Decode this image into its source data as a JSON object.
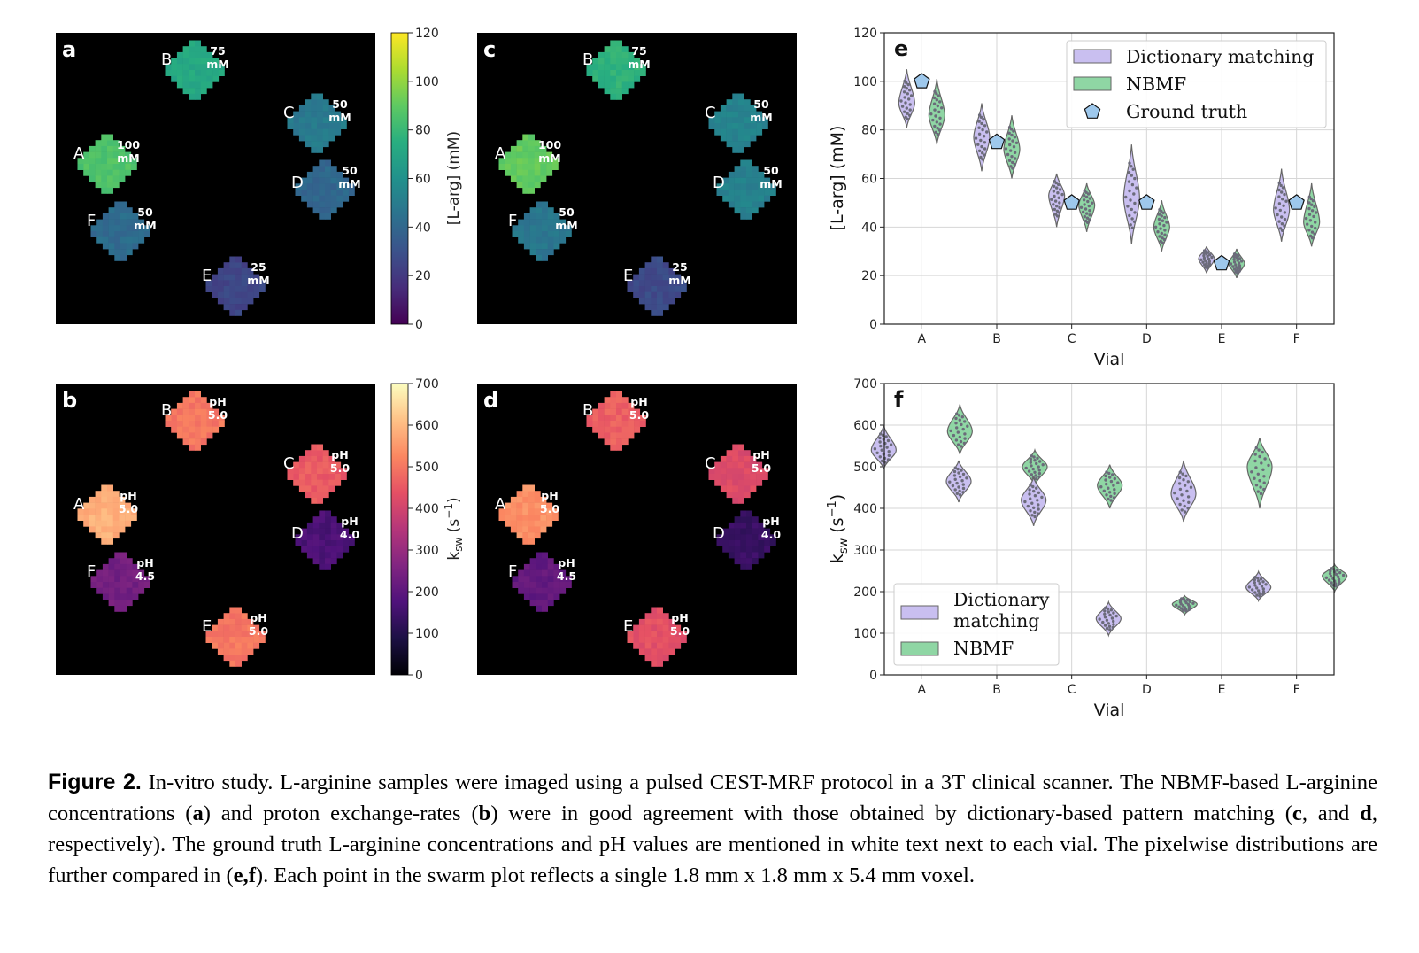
{
  "panels": {
    "a": {
      "letter": "a"
    },
    "b": {
      "letter": "b"
    },
    "c": {
      "letter": "c"
    },
    "d": {
      "letter": "d"
    }
  },
  "vials": [
    {
      "id": "A",
      "conc_label": [
        "100",
        "mM"
      ],
      "ph_label": [
        "pH",
        "5.0"
      ]
    },
    {
      "id": "B",
      "conc_label": [
        "75",
        "mM"
      ],
      "ph_label": [
        "pH",
        "5.0"
      ]
    },
    {
      "id": "C",
      "conc_label": [
        "50",
        "mM"
      ],
      "ph_label": [
        "pH",
        "5.0"
      ]
    },
    {
      "id": "D",
      "conc_label": [
        "50",
        "mM"
      ],
      "ph_label": [
        "pH",
        "4.0"
      ]
    },
    {
      "id": "E",
      "conc_label": [
        "25",
        "mM"
      ],
      "ph_label": [
        "pH",
        "5.0"
      ]
    },
    {
      "id": "F",
      "conc_label": [
        "50",
        "mM"
      ],
      "ph_label": [
        "pH",
        "4.5"
      ]
    }
  ],
  "colorbars": {
    "conc": {
      "label": "[L-arg] (mM)",
      "ticks": [
        "0",
        "20",
        "40",
        "60",
        "80",
        "100",
        "120"
      ],
      "range": [
        0,
        120
      ],
      "colormap": "viridis"
    },
    "ksw": {
      "label_main": "k",
      "label_sub": "sw",
      "label_tail": " (s",
      "label_sup": "−1",
      "label_close": ")",
      "ticks": [
        "0",
        "100",
        "200",
        "300",
        "400",
        "500",
        "600",
        "700"
      ],
      "range": [
        0,
        700
      ],
      "colormap": "magma"
    }
  },
  "chart_data": [
    {
      "panel": "e",
      "type": "violin",
      "xlabel": "Vial",
      "ylabel": "[L-arg] (mM)",
      "categories": [
        "A",
        "B",
        "C",
        "D",
        "E",
        "F"
      ],
      "ylim": [
        0,
        120
      ],
      "yticks": [
        "0",
        "20",
        "40",
        "60",
        "80",
        "100",
        "120"
      ],
      "grid": true,
      "legend_placement": "top-right",
      "series": [
        {
          "name": "Dictionary matching",
          "color": "#c9bff0",
          "medians": [
            91,
            77,
            53,
            52,
            27,
            47
          ],
          "ranges": [
            [
              81,
              105
            ],
            [
              63,
              91
            ],
            [
              40,
              62
            ],
            [
              33,
              74
            ],
            [
              21,
              32
            ],
            [
              34,
              64
            ]
          ]
        },
        {
          "name": "NBMF",
          "color": "#8fd6a4",
          "medians": [
            86,
            72,
            49,
            40,
            25,
            42
          ],
          "ranges": [
            [
              74,
              101
            ],
            [
              60,
              86
            ],
            [
              38,
              58
            ],
            [
              30,
              51
            ],
            [
              19,
              31
            ],
            [
              32,
              58
            ]
          ]
        },
        {
          "name": "Ground truth",
          "color": "#9ec8ec",
          "values": [
            100,
            75,
            50,
            50,
            25,
            50
          ]
        }
      ]
    },
    {
      "panel": "f",
      "type": "violin",
      "xlabel": "Vial",
      "ylabel": "ksw (s−1)",
      "categories": [
        "A",
        "B",
        "C",
        "D",
        "E",
        "F"
      ],
      "ylim": [
        0,
        700
      ],
      "yticks": [
        "0",
        "100",
        "200",
        "300",
        "400",
        "500",
        "600",
        "700"
      ],
      "grid": true,
      "legend_placement": "lower-left",
      "legend_labels": [
        [
          "Dictionary",
          "matching"
        ],
        [
          "NBMF"
        ]
      ],
      "series": [
        {
          "name": "Dictionary matching",
          "color": "#c9bff0",
          "medians": [
            540,
            465,
            420,
            135,
            435,
            210
          ],
          "ranges": [
            [
              495,
              600
            ],
            [
              415,
              515
            ],
            [
              358,
              475
            ],
            [
              95,
              175
            ],
            [
              368,
              515
            ],
            [
              178,
              248
            ]
          ]
        },
        {
          "name": "NBMF",
          "color": "#8fd6a4",
          "medians": [
            585,
            500,
            455,
            170,
            500,
            238
          ],
          "ranges": [
            [
              530,
              650
            ],
            [
              455,
              540
            ],
            [
              400,
              505
            ],
            [
              145,
              190
            ],
            [
              400,
              570
            ],
            [
              200,
              265
            ]
          ]
        }
      ]
    }
  ],
  "caption": {
    "lead": "Figure 2.",
    "s1": " In-vitro study. L-arginine samples were imaged using a pulsed CEST-MRF protocol in a 3T clinical scanner. The NBMF-based L-arginine concentrations (",
    "b1": "a",
    "s2": ") and proton exchange-rates (",
    "b2": "b",
    "s3": ") were in good agreement with those obtained by dictionary-based pattern matching (",
    "b3": "c",
    "s4": ", and ",
    "b4": "d",
    "s5": ", respectively).  The ground truth L-arginine concentrations and pH values are mentioned in white text next to each vial. The pixelwise distributions are further compared in (",
    "b5": "e,f",
    "s6": "). Each point in the swarm plot reflects a single 1.8 mm x 1.8 mm x 5.4 mm voxel."
  }
}
